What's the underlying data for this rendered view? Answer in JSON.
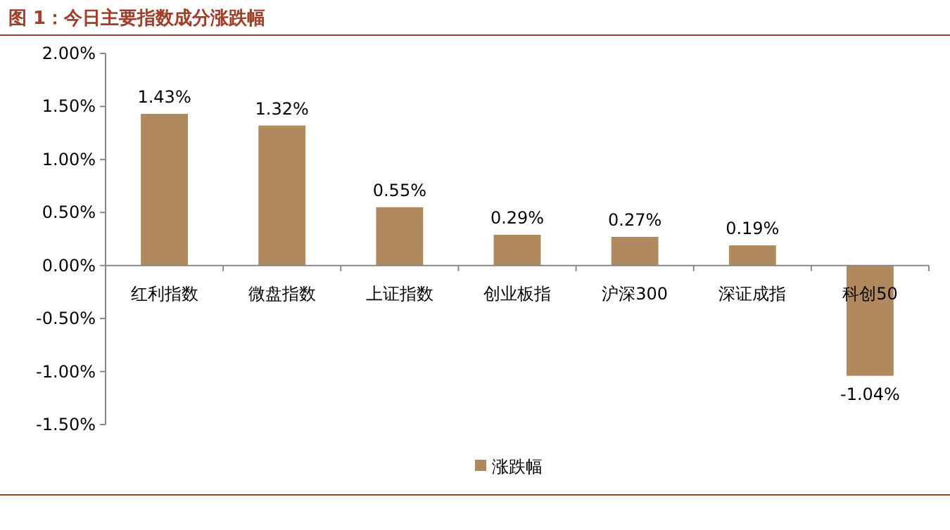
{
  "chart_data": {
    "type": "bar",
    "title": "图 1：今日主要指数成分涨跌幅",
    "categories": [
      "红利指数",
      "微盘指数",
      "上证指数",
      "创业板指",
      "沪深300",
      "深证成指",
      "科创50"
    ],
    "series": [
      {
        "name": "涨跌幅",
        "color": "#b08a5e",
        "values": [
          1.43,
          1.32,
          0.55,
          0.29,
          0.27,
          0.19,
          -1.04
        ],
        "value_labels": [
          "1.43%",
          "1.32%",
          "0.55%",
          "0.29%",
          "0.27%",
          "0.19%",
          "-1.04%"
        ]
      }
    ],
    "ylim": [
      -1.5,
      2
    ],
    "yticks": [
      {
        "value": -1.5,
        "label": "-1.50%"
      },
      {
        "value": -1,
        "label": "-1.00%"
      },
      {
        "value": -0.5,
        "label": "-0.50%"
      },
      {
        "value": 0,
        "label": "0.00%"
      },
      {
        "value": 0.5,
        "label": "0.50%"
      },
      {
        "value": 1,
        "label": "1.00%"
      },
      {
        "value": 1.5,
        "label": "1.50%"
      },
      {
        "value": 2,
        "label": "2.00%"
      }
    ],
    "grid": false,
    "legend": "bottom"
  }
}
